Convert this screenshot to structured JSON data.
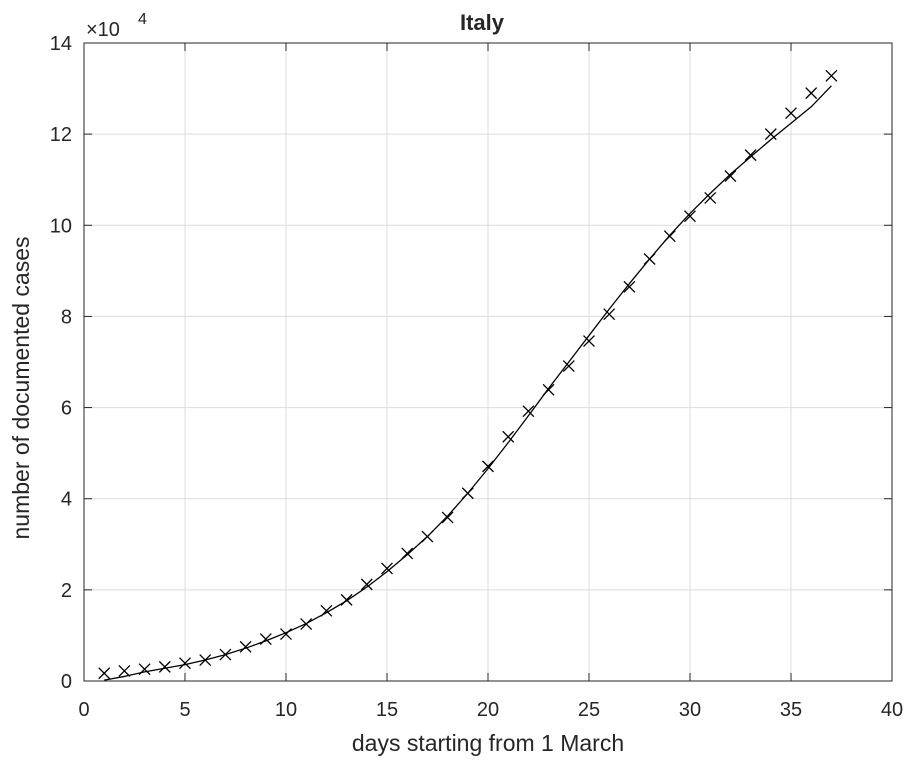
{
  "chart_data": {
    "type": "scatter",
    "title": "Italy",
    "xlabel": "days starting from 1 March",
    "ylabel": "number of documented cases",
    "y_scale_label": "×10",
    "y_scale_exponent": "4",
    "x": [
      1,
      2,
      3,
      4,
      5,
      6,
      7,
      8,
      9,
      10,
      11,
      12,
      13,
      14,
      15,
      16,
      17,
      18,
      19,
      20,
      21,
      22,
      23,
      24,
      25,
      26,
      27,
      28,
      29,
      30,
      31,
      32,
      33,
      34,
      35,
      36,
      37
    ],
    "series": [
      {
        "color": "#000000",
        "marker": "x",
        "values": [
          0.17,
          0.22,
          0.26,
          0.31,
          0.39,
          0.46,
          0.58,
          0.75,
          0.92,
          1.03,
          1.25,
          1.54,
          1.78,
          2.12,
          2.47,
          2.8,
          3.17,
          3.59,
          4.12,
          4.71,
          5.36,
          5.92,
          6.39,
          6.91,
          7.46,
          8.05,
          8.65,
          9.26,
          9.76,
          10.2,
          10.6,
          11.08,
          11.54,
          12.0,
          12.46,
          12.9,
          13.28
        ]
      },
      {
        "color": "#000000",
        "marker": "line",
        "values": [
          0.02,
          0.1,
          0.2,
          0.28,
          0.36,
          0.46,
          0.58,
          0.72,
          0.88,
          1.06,
          1.26,
          1.5,
          1.76,
          2.06,
          2.4,
          2.77,
          3.17,
          3.62,
          4.12,
          4.66,
          5.23,
          5.82,
          6.42,
          7.0,
          7.58,
          8.16,
          8.72,
          9.26,
          9.78,
          10.26,
          10.7,
          11.12,
          11.5,
          11.88,
          12.24,
          12.6,
          13.06
        ]
      }
    ],
    "xlim": [
      0,
      40
    ],
    "xticks": [
      0,
      5,
      10,
      15,
      20,
      25,
      30,
      35,
      40
    ],
    "ylim": [
      0,
      14
    ],
    "yticks": [
      0,
      2,
      4,
      6,
      8,
      10,
      12,
      14
    ],
    "grid": true
  }
}
